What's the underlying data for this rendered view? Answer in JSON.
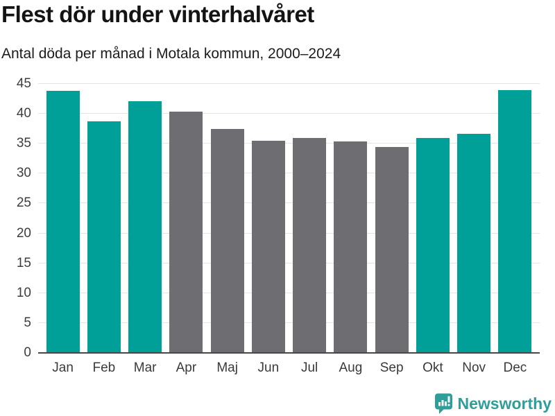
{
  "header": {
    "title": "Flest dör under vinterhalvåret",
    "subtitle": "Antal döda per månad i Motala kommun, 2000–2024"
  },
  "chart_data": {
    "type": "bar",
    "title": "Flest dör under vinterhalvåret",
    "subtitle": "Antal döda per månad i Motala kommun, 2000–2024",
    "categories": [
      "Jan",
      "Feb",
      "Mar",
      "Apr",
      "Maj",
      "Jun",
      "Jul",
      "Aug",
      "Sep",
      "Okt",
      "Nov",
      "Dec"
    ],
    "values": [
      43.9,
      38.7,
      42.1,
      40.4,
      37.5,
      35.5,
      36.0,
      35.4,
      34.4,
      35.9,
      36.6,
      44.0
    ],
    "bar_color_keys": [
      "teal",
      "teal",
      "teal",
      "gray",
      "gray",
      "gray",
      "gray",
      "gray",
      "gray",
      "teal",
      "teal",
      "teal"
    ],
    "colors": {
      "teal": "#00a099",
      "gray": "#6d6d72"
    },
    "highlight_meaning": "winter half-year months in teal, summer months in gray",
    "xlabel": "",
    "ylabel": "",
    "ylim": [
      0,
      45
    ],
    "yticks": [
      0,
      5,
      10,
      15,
      20,
      25,
      30,
      35,
      40,
      45
    ],
    "grid": "horizontal",
    "legend": "none"
  },
  "footer": {
    "brand": "Newsworthy",
    "brand_color": "#2f9e9a",
    "logo_icon": "bar-chart-speech-bubble-icon"
  }
}
